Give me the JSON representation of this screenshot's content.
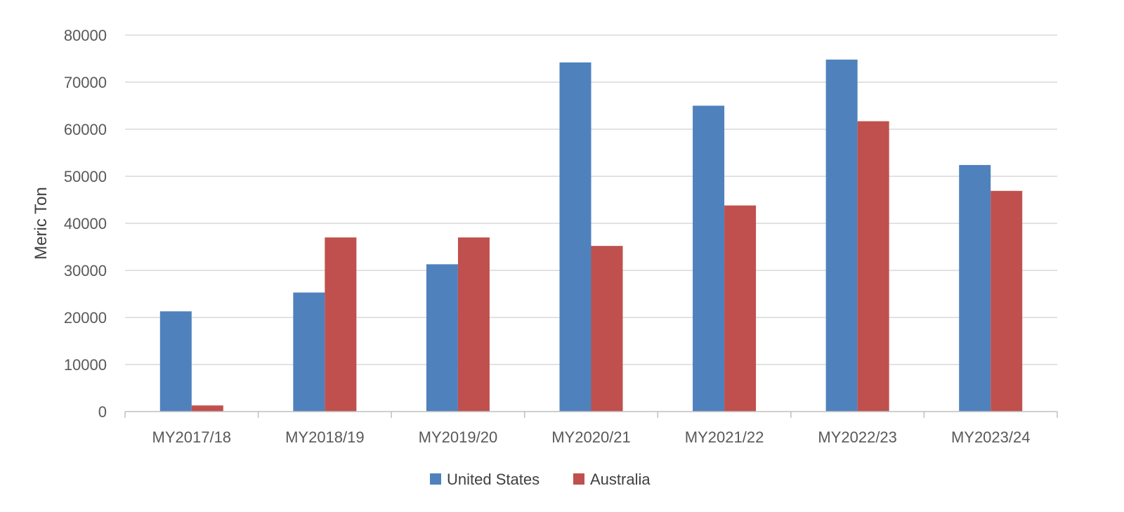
{
  "chart_data": {
    "type": "bar",
    "title": "",
    "xlabel": "",
    "ylabel": "Meric Ton",
    "ylim": [
      0,
      80000
    ],
    "y_ticks": [
      0,
      10000,
      20000,
      30000,
      40000,
      50000,
      60000,
      70000,
      80000
    ],
    "grid": true,
    "legend_position": "bottom",
    "categories": [
      "MY2017/18",
      "MY2018/19",
      "MY2019/20",
      "MY2020/21",
      "MY2021/22",
      "MY2022/23",
      "MY2023/24"
    ],
    "series": [
      {
        "name": "United States",
        "color": "#4F81BD",
        "values": [
          21300,
          25300,
          31300,
          74200,
          65000,
          74800,
          52400
        ]
      },
      {
        "name": "Australia",
        "color": "#C0504D",
        "values": [
          1300,
          37000,
          37000,
          35200,
          43800,
          61700,
          46900
        ]
      }
    ]
  }
}
